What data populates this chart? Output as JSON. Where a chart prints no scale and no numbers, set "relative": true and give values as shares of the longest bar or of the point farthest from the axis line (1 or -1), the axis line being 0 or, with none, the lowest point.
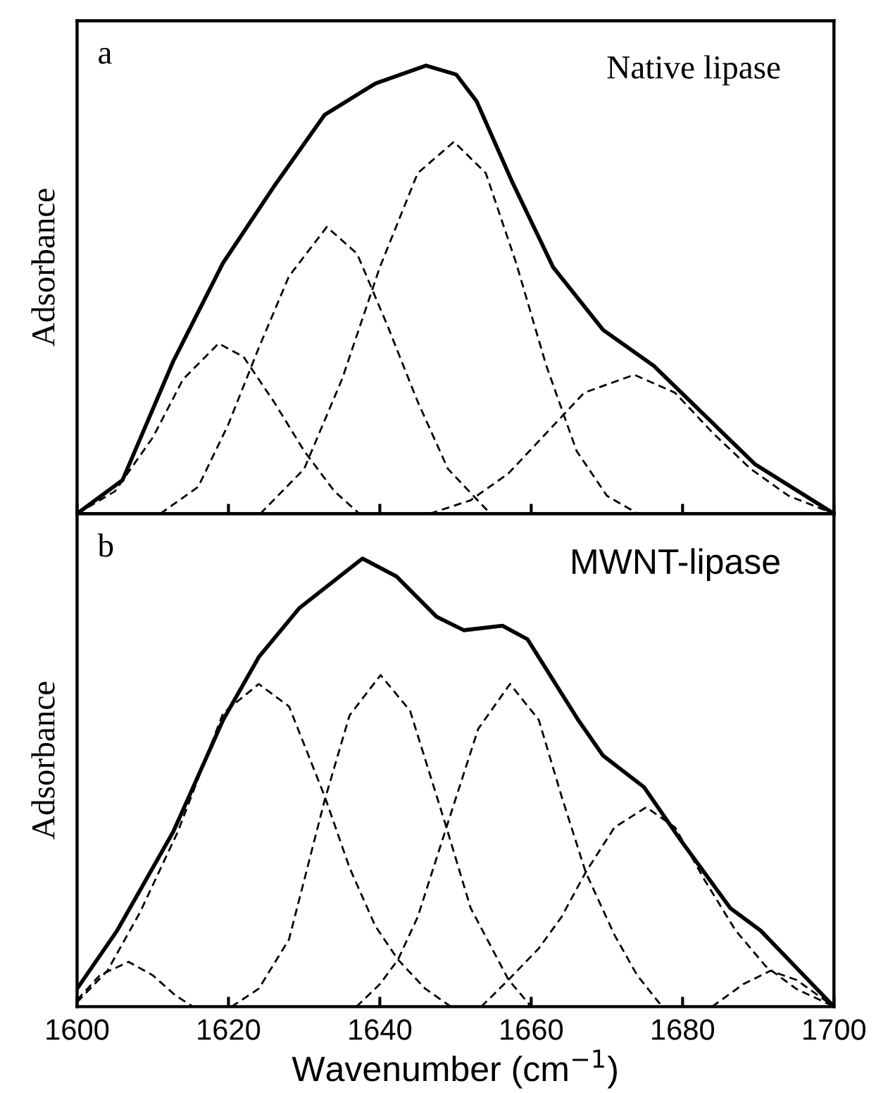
{
  "chart_data": [
    {
      "type": "line",
      "title": "a",
      "ylabel": "Adsorbance",
      "annotations": [
        "Native lipase"
      ],
      "relative": true,
      "xlim": [
        1600,
        1700
      ],
      "xticks": [
        1600,
        1620,
        1640,
        1660,
        1680,
        1700
      ],
      "tick_labels": false,
      "grid": false,
      "legend": false,
      "series": [
        {
          "color": "#000000",
          "line_style": "solid",
          "x": [
            1600,
            1606,
            1612.7,
            1619.3,
            1626,
            1632.7,
            1639.4,
            1646.1,
            1650.1,
            1652.8,
            1657.5,
            1662.9,
            1669.5,
            1676.2,
            1682.9,
            1689.6,
            1700
          ],
          "values": [
            0,
            0.075,
            0.34,
            0.56,
            0.73,
            0.89,
            0.96,
            1.0,
            0.98,
            0.92,
            0.74,
            0.55,
            0.41,
            0.33,
            0.22,
            0.11,
            0
          ]
        },
        {
          "color": "#000000",
          "line_style": "dashed",
          "x": [
            1600,
            1605,
            1610,
            1614,
            1618.7,
            1622,
            1626,
            1630,
            1634,
            1637.3
          ],
          "values": [
            0,
            0.05,
            0.17,
            0.3,
            0.38,
            0.35,
            0.25,
            0.14,
            0.05,
            0
          ]
        },
        {
          "color": "#000000",
          "line_style": "dashed",
          "x": [
            1611,
            1616,
            1620,
            1624,
            1628,
            1633,
            1637,
            1641,
            1645,
            1649,
            1654.6
          ],
          "values": [
            0,
            0.06,
            0.2,
            0.37,
            0.53,
            0.64,
            0.58,
            0.42,
            0.25,
            0.1,
            0
          ]
        },
        {
          "color": "#000000",
          "line_style": "dashed",
          "x": [
            1624.2,
            1630,
            1635,
            1640,
            1645,
            1649.8,
            1654,
            1658,
            1662,
            1666,
            1670,
            1674.1
          ],
          "values": [
            0,
            0.1,
            0.3,
            0.55,
            0.76,
            0.83,
            0.76,
            0.56,
            0.33,
            0.14,
            0.04,
            0
          ]
        },
        {
          "color": "#000000",
          "line_style": "dashed",
          "x": [
            1646.6,
            1652,
            1657,
            1662,
            1667,
            1673.6,
            1679,
            1684,
            1689,
            1694,
            1700
          ],
          "values": [
            0,
            0.03,
            0.09,
            0.18,
            0.27,
            0.31,
            0.27,
            0.18,
            0.1,
            0.04,
            0
          ]
        }
      ]
    },
    {
      "type": "line",
      "title": "b",
      "ylabel": "Adsorbance",
      "xlabel": "Wavenumber (cm$^{−1}$)",
      "annotations": [
        "MWNT-lipase"
      ],
      "relative": true,
      "xlim": [
        1600,
        1700
      ],
      "xticks": [
        1600,
        1620,
        1640,
        1660,
        1680,
        1700
      ],
      "tick_labels": "x",
      "grid": false,
      "legend": false,
      "series": [
        {
          "color": "#000000",
          "line_style": "solid",
          "x": [
            1600,
            1605.3,
            1612.7,
            1619.3,
            1624,
            1629.4,
            1637.7,
            1642.2,
            1647.5,
            1651.1,
            1656.2,
            1659.5,
            1666.2,
            1669.5,
            1674.9,
            1679.6,
            1686.3,
            1690.3,
            1700
          ],
          "values": [
            0.04,
            0.17,
            0.39,
            0.64,
            0.78,
            0.89,
            1.0,
            0.96,
            0.87,
            0.84,
            0.85,
            0.82,
            0.64,
            0.56,
            0.49,
            0.375,
            0.22,
            0.17,
            0
          ]
        },
        {
          "color": "#000000",
          "line_style": "dashed",
          "x": [
            1600,
            1603,
            1606.8,
            1610,
            1613,
            1615.3
          ],
          "values": [
            0.015,
            0.07,
            0.1,
            0.07,
            0.025,
            0
          ]
        },
        {
          "color": "#000000",
          "line_style": "dashed",
          "x": [
            1600,
            1604,
            1608.3,
            1613.3,
            1619.3,
            1624,
            1628,
            1632.7,
            1636,
            1639.4,
            1642.4,
            1646,
            1649.4
          ],
          "values": [
            0.01,
            0.08,
            0.21,
            0.39,
            0.655,
            0.72,
            0.67,
            0.47,
            0.31,
            0.18,
            0.105,
            0.04,
            0
          ]
        },
        {
          "color": "#000000",
          "line_style": "dashed",
          "x": [
            1620.4,
            1624,
            1628,
            1632.7,
            1636,
            1640.1,
            1644,
            1648.8,
            1652,
            1657,
            1660
          ],
          "values": [
            0,
            0.04,
            0.15,
            0.46,
            0.65,
            0.74,
            0.66,
            0.4,
            0.22,
            0.06,
            0
          ]
        },
        {
          "color": "#000000",
          "line_style": "dashed",
          "x": [
            1636.9,
            1640,
            1642.4,
            1645,
            1648.8,
            1653,
            1657.2,
            1661,
            1664,
            1667.2,
            1671,
            1674,
            1677.3
          ],
          "values": [
            0,
            0.05,
            0.105,
            0.2,
            0.4,
            0.62,
            0.72,
            0.64,
            0.47,
            0.3,
            0.16,
            0.07,
            0
          ]
        },
        {
          "color": "#000000",
          "line_style": "dashed",
          "x": [
            1653.4,
            1657,
            1661,
            1664,
            1667.2,
            1671,
            1675.2,
            1679,
            1683,
            1687,
            1691,
            1695,
            1700
          ],
          "values": [
            0,
            0.06,
            0.13,
            0.2,
            0.3,
            0.4,
            0.445,
            0.4,
            0.28,
            0.17,
            0.09,
            0.04,
            0
          ]
        },
        {
          "color": "#000000",
          "line_style": "dashed",
          "x": [
            1683.9,
            1688,
            1691.6,
            1695,
            1700
          ],
          "values": [
            0,
            0.05,
            0.08,
            0.06,
            0
          ]
        }
      ]
    }
  ]
}
